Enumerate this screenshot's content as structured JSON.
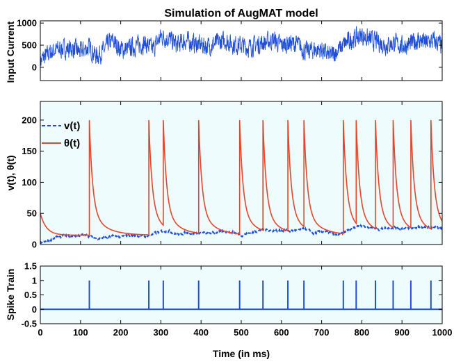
{
  "chart_data": [
    {
      "type": "line",
      "title": "Simulation of AugMAT model",
      "xlabel": "",
      "ylabel": "Input Current",
      "xlim": [
        0,
        1000
      ],
      "ylim": [
        -300,
        1050
      ],
      "yticks": [
        0,
        500,
        1000
      ],
      "colors": {
        "current": "#1f4fd8"
      },
      "series": [
        {
          "name": "",
          "x": [
            0,
            20,
            40,
            60,
            80,
            100,
            120,
            140,
            160,
            170,
            180,
            200,
            220,
            240,
            260,
            280,
            300,
            320,
            340,
            360,
            380,
            400,
            420,
            440,
            460,
            480,
            500,
            520,
            540,
            560,
            580,
            600,
            620,
            640,
            660,
            680,
            700,
            720,
            740,
            760,
            780,
            800,
            820,
            840,
            860,
            880,
            900,
            920,
            940,
            960,
            980,
            1000
          ],
          "values": [
            150,
            300,
            400,
            420,
            420,
            350,
            450,
            250,
            400,
            550,
            600,
            400,
            420,
            500,
            550,
            400,
            700,
            650,
            500,
            600,
            550,
            500,
            480,
            550,
            600,
            520,
            500,
            450,
            520,
            560,
            620,
            500,
            550,
            520,
            350,
            400,
            400,
            250,
            380,
            550,
            650,
            720,
            620,
            580,
            500,
            550,
            480,
            520,
            620,
            550,
            600,
            480
          ]
        }
      ]
    },
    {
      "type": "line",
      "title": "",
      "xlabel": "",
      "ylabel": "v(t), θ(t)",
      "xlim": [
        0,
        1000
      ],
      "ylim": [
        0,
        230
      ],
      "yticks": [
        0,
        50,
        100,
        150,
        200
      ],
      "background": "#eefcfd",
      "legend": "top-left",
      "spike_times": [
        122,
        270,
        306,
        394,
        496,
        554,
        616,
        656,
        754,
        786,
        834,
        878,
        922,
        972
      ],
      "series": [
        {
          "name": "v(t)",
          "style": "dashed",
          "color": "#1f4fd8",
          "x": [
            0,
            20,
            40,
            60,
            80,
            100,
            120,
            140,
            160,
            180,
            200,
            220,
            240,
            260,
            280,
            300,
            320,
            340,
            360,
            380,
            400,
            420,
            440,
            460,
            480,
            500,
            520,
            540,
            560,
            580,
            600,
            620,
            640,
            660,
            680,
            700,
            720,
            740,
            760,
            780,
            800,
            820,
            840,
            860,
            880,
            900,
            920,
            940,
            960,
            980,
            1000
          ],
          "values": [
            2,
            6,
            12,
            14,
            13,
            15,
            14,
            10,
            11,
            13,
            12,
            15,
            14,
            13,
            17,
            21,
            22,
            16,
            19,
            18,
            19,
            17,
            20,
            21,
            20,
            15,
            18,
            22,
            24,
            22,
            23,
            22,
            23,
            25,
            18,
            21,
            19,
            14,
            21,
            28,
            31,
            27,
            24,
            27,
            28,
            26,
            26,
            28,
            27,
            28,
            26
          ]
        },
        {
          "name": "θ(t)",
          "style": "solid",
          "color": "#e8442a",
          "rest_threshold": 15,
          "spike_peak": 200
        }
      ]
    },
    {
      "type": "line",
      "title": "",
      "xlabel": "Time (in ms)",
      "ylabel": "Spike Train",
      "xlim": [
        0,
        1000
      ],
      "ylim": [
        -0.5,
        1.5
      ],
      "yticks": [
        -0.5,
        0,
        0.5,
        1,
        1.5
      ],
      "xticks": [
        0,
        100,
        200,
        300,
        400,
        500,
        600,
        700,
        800,
        900,
        1000
      ],
      "background": "#eefcfd",
      "color": "#1f4fd8",
      "spike_times": [
        122,
        270,
        306,
        394,
        496,
        554,
        616,
        656,
        754,
        786,
        834,
        878,
        922,
        972
      ]
    }
  ]
}
